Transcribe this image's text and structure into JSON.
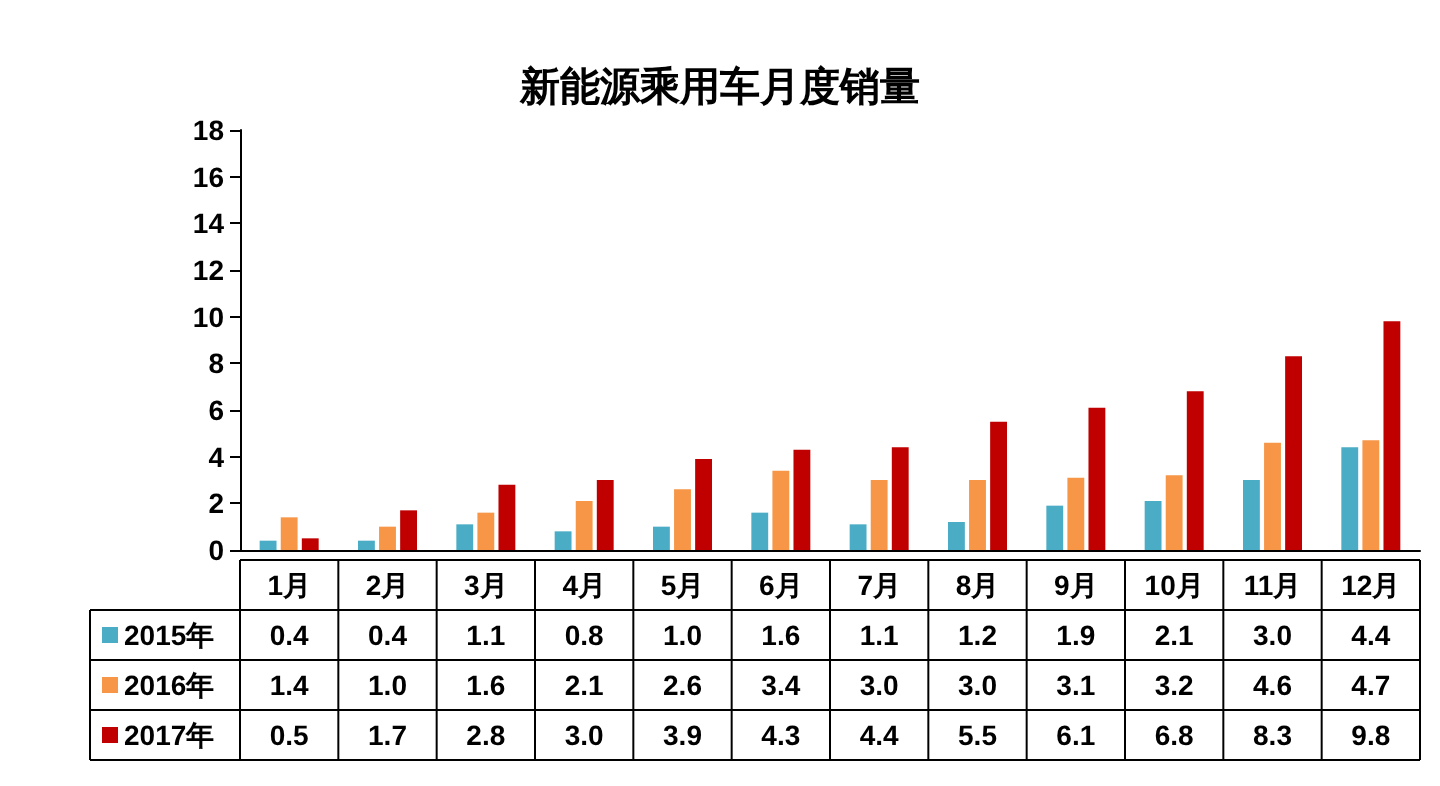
{
  "chart_data": {
    "type": "bar",
    "title": "新能源乘用车月度销量",
    "categories": [
      "1月",
      "2月",
      "3月",
      "4月",
      "5月",
      "6月",
      "7月",
      "8月",
      "9月",
      "10月",
      "11月",
      "12月"
    ],
    "series": [
      {
        "name": "2015年",
        "color": "#4bacc6",
        "values": [
          0.4,
          0.4,
          1.1,
          0.8,
          1.0,
          1.6,
          1.1,
          1.2,
          1.9,
          2.1,
          3.0,
          4.4
        ],
        "value_labels": [
          "0.4",
          "0.4",
          "1.1",
          "0.8",
          "1.0",
          "1.6",
          "1.1",
          "1.2",
          "1.9",
          "2.1",
          "3.0",
          "4.4"
        ]
      },
      {
        "name": "2016年",
        "color": "#f79646",
        "values": [
          1.4,
          1.0,
          1.6,
          2.1,
          2.6,
          3.4,
          3.0,
          3.0,
          3.1,
          3.2,
          4.6,
          4.7
        ],
        "value_labels": [
          "1.4",
          "1.0",
          "1.6",
          "2.1",
          "2.6",
          "3.4",
          "3.0",
          "3.0",
          "3.1",
          "3.2",
          "4.6",
          "4.7"
        ]
      },
      {
        "name": "2017年",
        "color": "#c00000",
        "values": [
          0.5,
          1.7,
          2.8,
          3.0,
          3.9,
          4.3,
          4.4,
          5.5,
          6.1,
          6.8,
          8.3,
          9.8
        ],
        "value_labels": [
          "0.5",
          "1.7",
          "2.8",
          "3.0",
          "3.9",
          "4.3",
          "4.4",
          "5.5",
          "6.1",
          "6.8",
          "8.3",
          "9.8"
        ]
      }
    ],
    "ylim": [
      0,
      18
    ],
    "yticks": [
      0,
      2,
      4,
      6,
      8,
      10,
      12,
      14,
      16,
      18
    ],
    "grid": false,
    "legend": "bottom left"
  }
}
